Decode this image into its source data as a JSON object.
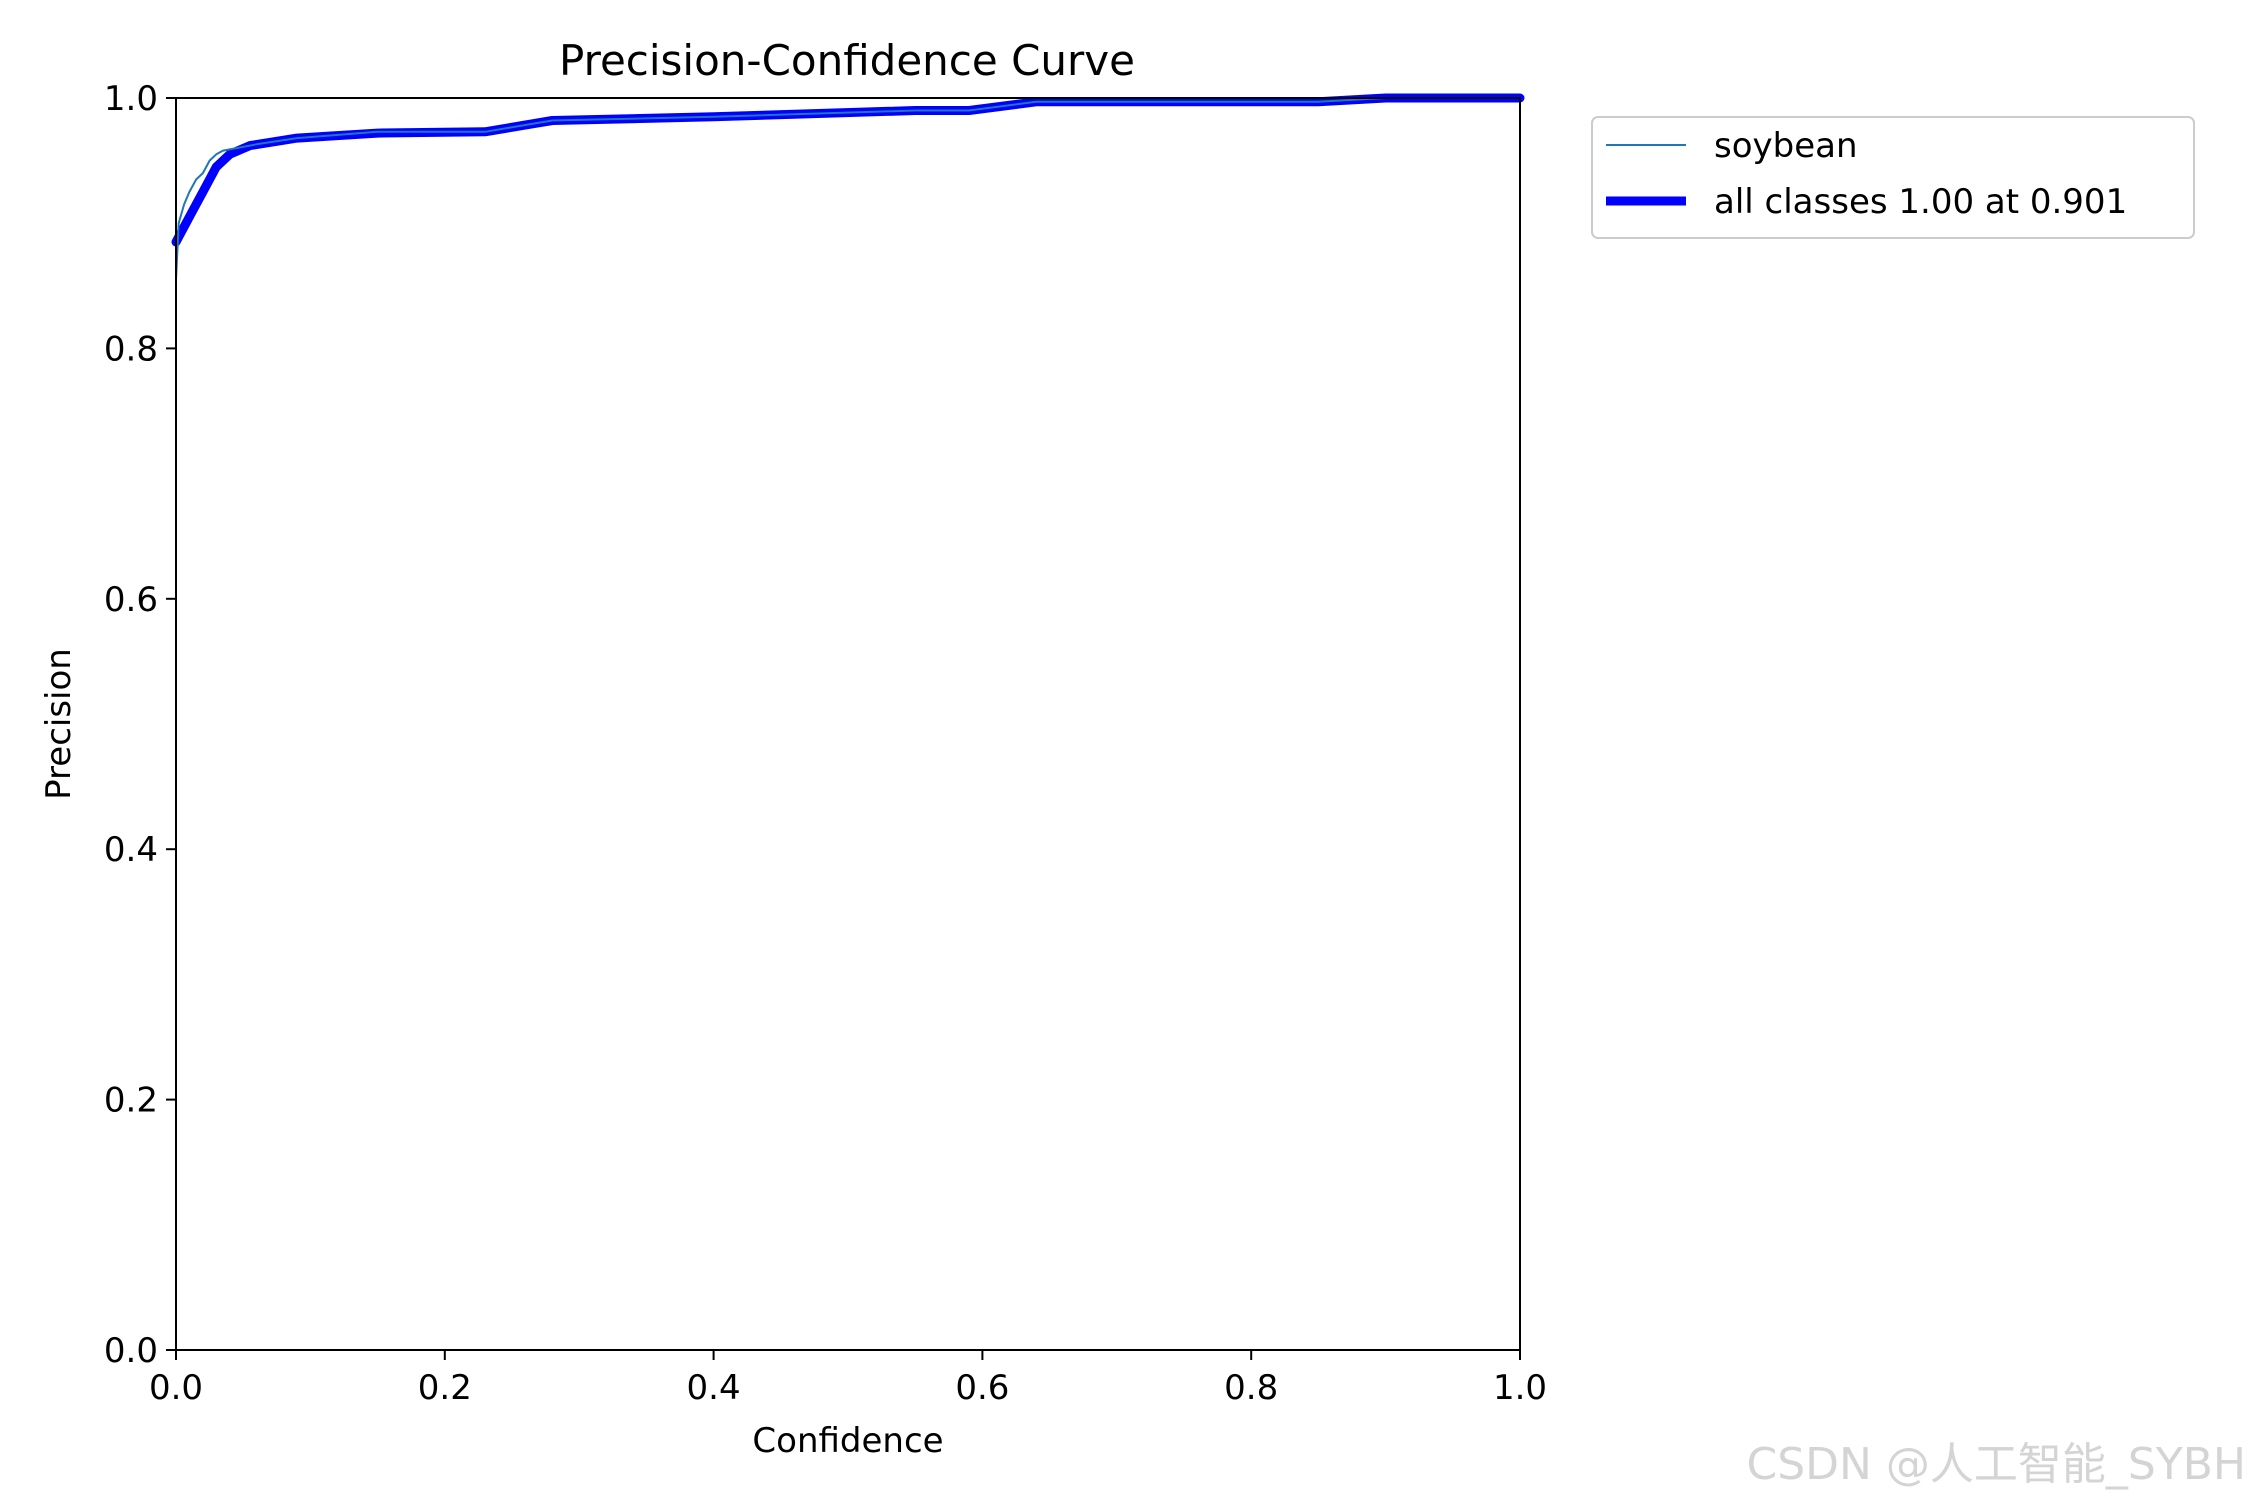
{
  "chart_data": {
    "type": "line",
    "title": "Precision-Confidence Curve",
    "xlabel": "Confidence",
    "ylabel": "Precision",
    "xlim": [
      0.0,
      1.0
    ],
    "ylim": [
      0.0,
      1.0
    ],
    "xticks": [
      "0.0",
      "0.2",
      "0.4",
      "0.6",
      "0.8",
      "1.0"
    ],
    "yticks": [
      "0.0",
      "0.2",
      "0.4",
      "0.6",
      "0.8",
      "1.0"
    ],
    "grid": false,
    "legend_position": "outside-top-right",
    "series": [
      {
        "name": "soybean",
        "color": "#1f77b4",
        "style": "thin",
        "x": [
          0.0,
          0.002,
          0.006,
          0.01,
          0.015,
          0.02,
          0.025,
          0.03,
          0.035,
          0.045,
          0.06,
          0.09,
          0.15,
          0.23,
          0.28,
          0.4,
          0.55,
          0.59,
          0.64,
          0.85,
          0.9,
          1.0
        ],
        "y": [
          0.855,
          0.9,
          0.915,
          0.925,
          0.935,
          0.94,
          0.95,
          0.955,
          0.958,
          0.96,
          0.963,
          0.968,
          0.973,
          0.973,
          0.982,
          0.985,
          0.99,
          0.99,
          0.997,
          0.997,
          1.0,
          1.0
        ]
      },
      {
        "name": "all classes 1.00 at 0.901",
        "color": "#0000ff",
        "style": "thick",
        "x": [
          0.0,
          0.01,
          0.02,
          0.03,
          0.04,
          0.055,
          0.09,
          0.15,
          0.23,
          0.28,
          0.4,
          0.55,
          0.59,
          0.64,
          0.85,
          0.9,
          1.0
        ],
        "y": [
          0.885,
          0.905,
          0.925,
          0.945,
          0.955,
          0.962,
          0.968,
          0.972,
          0.973,
          0.982,
          0.985,
          0.99,
          0.99,
          0.997,
          0.997,
          1.0,
          1.0
        ]
      }
    ]
  },
  "watermark": "CSDN @人工智能_SYBH"
}
